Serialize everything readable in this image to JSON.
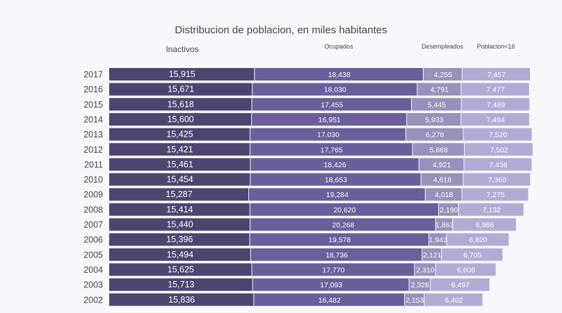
{
  "chart_data": {
    "type": "bar",
    "orientation": "horizontal",
    "stacked": true,
    "title": "Distribucion de poblacion, en miles habitantes",
    "categories": [
      "2017",
      "2016",
      "2015",
      "2014",
      "2013",
      "2012",
      "2011",
      "2010",
      "2009",
      "2008",
      "2007",
      "2006",
      "2005",
      "2004",
      "2003",
      "2002"
    ],
    "series": [
      {
        "name": "Inactivos",
        "color": "#4f4470",
        "values": [
          15915,
          15671,
          15618,
          15600,
          15425,
          15421,
          15461,
          15454,
          15287,
          15414,
          15440,
          15396,
          15494,
          15625,
          15713,
          15836
        ]
      },
      {
        "name": "Ocupados",
        "color": "#6b5e9b",
        "values": [
          18438,
          18030,
          17455,
          16951,
          17030,
          17765,
          18426,
          18653,
          19284,
          20620,
          20268,
          19578,
          18736,
          17770,
          17093,
          16482
        ]
      },
      {
        "name": "Desempleados",
        "color": "#9891bb",
        "values": [
          4255,
          4791,
          5445,
          5933,
          6278,
          5668,
          4921,
          4618,
          4018,
          2190,
          1863,
          1943,
          2121,
          2310,
          2328,
          2153
        ]
      },
      {
        "name": "Poblacion<16",
        "color": "#b1acd6",
        "values": [
          7457,
          7477,
          7489,
          7494,
          7520,
          7502,
          7436,
          7360,
          7275,
          7132,
          6966,
          6820,
          6705,
          6608,
          6497,
          6402
        ]
      }
    ],
    "legend": "column headers at top",
    "grid": false
  }
}
